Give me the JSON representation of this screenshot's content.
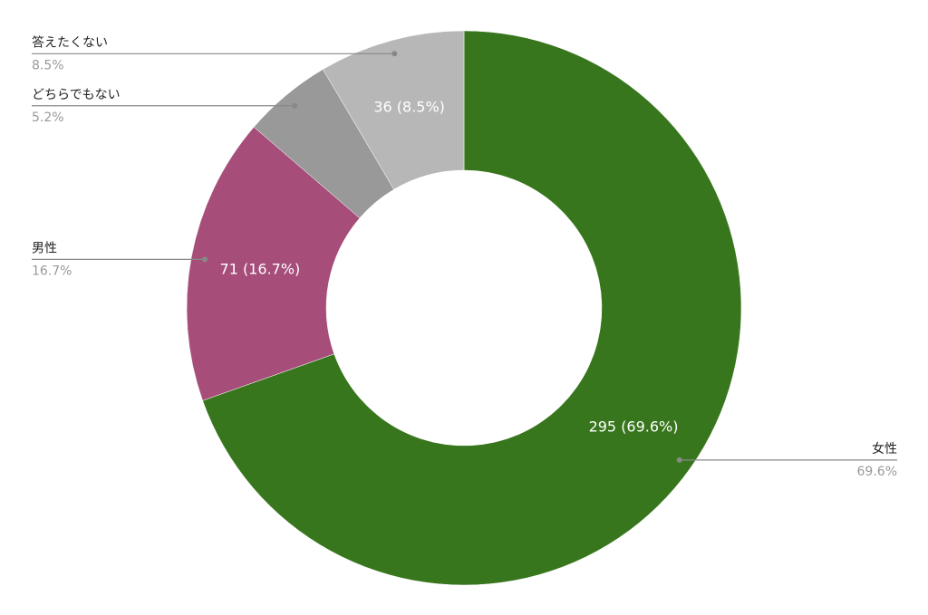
{
  "chart_data": {
    "type": "donut",
    "categories": [
      "女性",
      "男性",
      "どちらでもない",
      "答えたくない"
    ],
    "values": [
      295,
      71,
      22,
      36
    ],
    "value_labels": [
      "295 (69.6%)",
      "71 (16.7%)",
      null,
      "36 (8.5%)"
    ],
    "percent_labels": [
      "69.6%",
      "16.7%",
      "5.2%",
      "8.5%"
    ],
    "colors": [
      "#38761d",
      "#a64d79",
      "#999999",
      "#b7b7b7"
    ]
  }
}
